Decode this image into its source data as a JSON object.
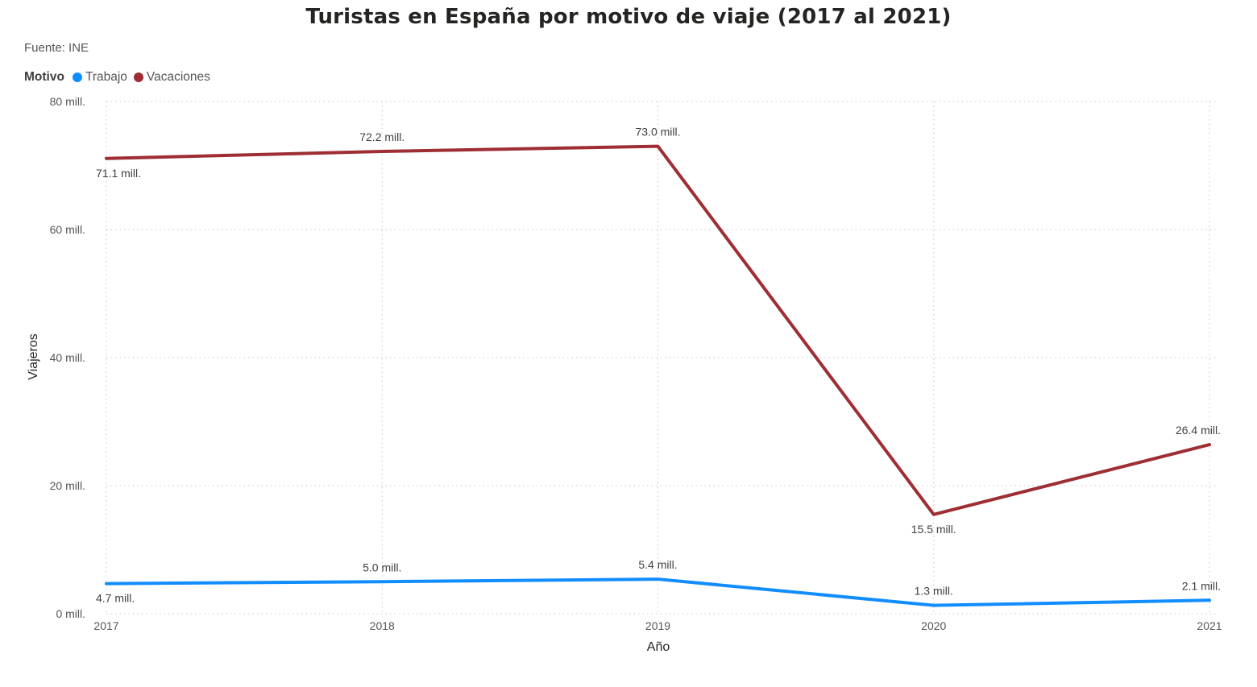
{
  "title": "Turistas en España por motivo de viaje (2017 al 2021)",
  "subtitle": "Fuente: INE",
  "legend": {
    "title": "Motivo",
    "items": [
      {
        "label": "Trabajo",
        "color": "#118DFF"
      },
      {
        "label": "Vacaciones",
        "color": "#9E2E34"
      }
    ]
  },
  "chart_data": {
    "type": "line",
    "title": "Turistas en España por motivo de viaje (2017 al 2021)",
    "xlabel": "Año",
    "ylabel": "Viajeros",
    "x": [
      "2017",
      "2018",
      "2019",
      "2020",
      "2021"
    ],
    "ylim": [
      0,
      80
    ],
    "yticks": [
      0,
      20,
      40,
      60,
      80
    ],
    "ytick_labels": [
      "0 mill.",
      "20 mill.",
      "40 mill.",
      "60 mill.",
      "80 mill."
    ],
    "grid": true,
    "legend_position": "top-left",
    "series": [
      {
        "name": "Trabajo",
        "color": "#118DFF",
        "values": [
          4.7,
          5.0,
          5.4,
          1.3,
          2.1
        ],
        "labels": [
          "4.7 mill.",
          "5.0 mill.",
          "5.4 mill.",
          "1.3 mill.",
          "2.1 mill."
        ],
        "label_positions": [
          "below",
          "above",
          "above",
          "above",
          "above"
        ]
      },
      {
        "name": "Vacaciones",
        "color": "#9E2E34",
        "values": [
          71.1,
          72.2,
          73.0,
          15.5,
          26.4
        ],
        "labels": [
          "71.1 mill.",
          "72.2 mill.",
          "73.0 mill.",
          "15.5 mill.",
          "26.4 mill."
        ],
        "label_positions": [
          "below",
          "above",
          "above",
          "below",
          "above"
        ]
      }
    ]
  }
}
